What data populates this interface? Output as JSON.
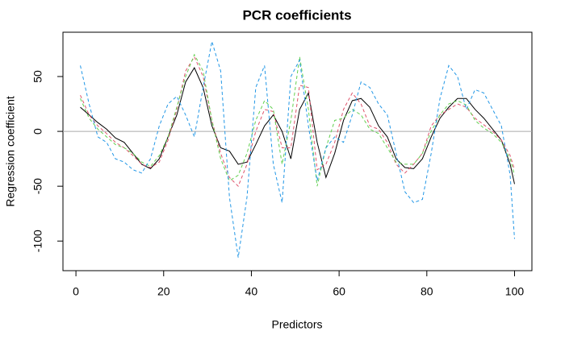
{
  "chart_data": {
    "type": "line",
    "title": "PCR coefficients",
    "x_label": "Predictors",
    "y_label": "Regression coefficient",
    "x": [
      1,
      3,
      5,
      7,
      9,
      11,
      13,
      15,
      17,
      19,
      21,
      23,
      25,
      27,
      29,
      31,
      33,
      35,
      37,
      39,
      41,
      43,
      45,
      47,
      49,
      51,
      53,
      55,
      57,
      59,
      61,
      63,
      65,
      67,
      69,
      71,
      73,
      75,
      77,
      79,
      81,
      83,
      85,
      87,
      89,
      91,
      93,
      95,
      97,
      99,
      100
    ],
    "series": [
      {
        "color": "#000000",
        "line_style": "solid",
        "values": [
          22,
          15,
          8,
          2,
          -6,
          -10,
          -20,
          -30,
          -34,
          -25,
          -5,
          15,
          45,
          58,
          40,
          5,
          -15,
          -18,
          -30,
          -28,
          -12,
          5,
          15,
          0,
          -25,
          20,
          35,
          -10,
          -42,
          -20,
          10,
          28,
          30,
          22,
          5,
          -5,
          -25,
          -33,
          -34,
          -25,
          -5,
          12,
          22,
          30,
          30,
          20,
          12,
          2,
          -8,
          -30,
          -48
        ]
      },
      {
        "color": "#DF536B",
        "line_style": "dashed",
        "values": [
          33,
          15,
          5,
          -2,
          -10,
          -15,
          -22,
          -30,
          -33,
          -28,
          -8,
          20,
          55,
          68,
          50,
          10,
          -20,
          -42,
          -50,
          -30,
          0,
          20,
          18,
          -15,
          -15,
          42,
          40,
          -35,
          -30,
          -10,
          20,
          35,
          25,
          5,
          2,
          -10,
          -30,
          -38,
          -30,
          -20,
          5,
          15,
          20,
          25,
          22,
          12,
          6,
          0,
          -8,
          -22,
          -35
        ]
      },
      {
        "color": "#61D04F",
        "line_style": "dashed",
        "values": [
          30,
          12,
          2,
          -5,
          -12,
          -15,
          -20,
          -28,
          -32,
          -22,
          -5,
          22,
          50,
          70,
          55,
          10,
          -25,
          -45,
          -40,
          -20,
          10,
          28,
          20,
          -30,
          10,
          68,
          20,
          -50,
          -15,
          10,
          12,
          20,
          15,
          2,
          -2,
          -15,
          -28,
          -30,
          -30,
          -20,
          0,
          15,
          25,
          28,
          24,
          10,
          3,
          -2,
          -10,
          -25,
          -40
        ]
      },
      {
        "color": "#2297E6",
        "line_style": "dashed",
        "values": [
          60,
          25,
          -5,
          -10,
          -25,
          -28,
          -35,
          -38,
          -25,
          5,
          25,
          32,
          15,
          -5,
          40,
          82,
          55,
          -60,
          -115,
          -60,
          40,
          60,
          -30,
          -65,
          50,
          65,
          5,
          -45,
          -15,
          -5,
          -10,
          15,
          45,
          40,
          25,
          15,
          -20,
          -55,
          -65,
          -62,
          -20,
          30,
          60,
          50,
          20,
          38,
          35,
          20,
          5,
          -40,
          -98
        ]
      }
    ],
    "xlim": [
      -2.96,
      103.96
    ],
    "ylim": [
      -127,
      90.4
    ],
    "xticks": [
      0,
      20,
      40,
      60,
      80,
      100
    ],
    "yticks": [
      -100,
      -50,
      0,
      50
    ],
    "hline": 0
  }
}
